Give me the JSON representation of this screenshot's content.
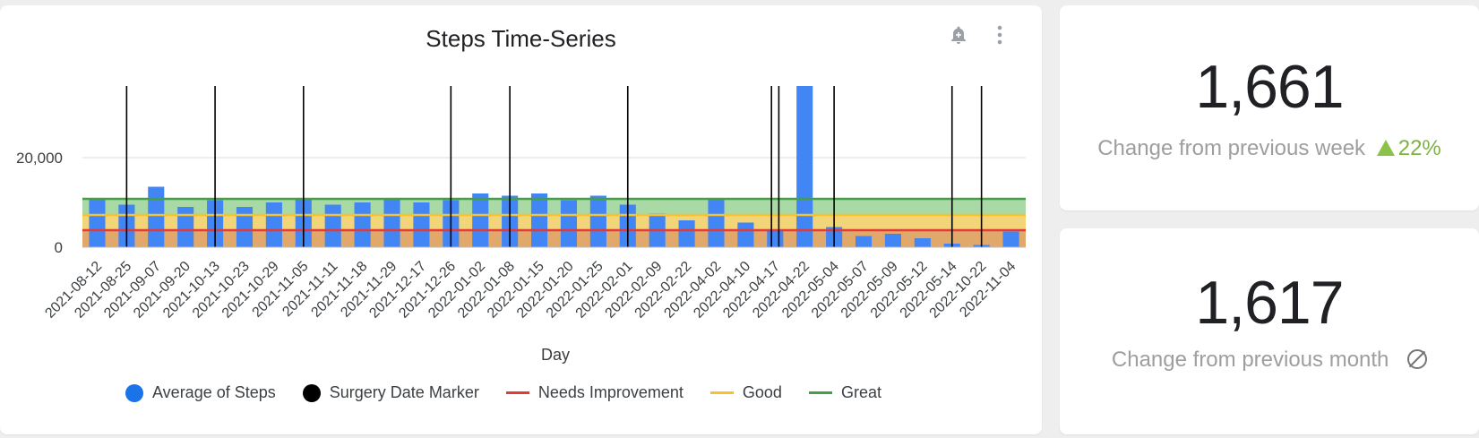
{
  "chart": {
    "title": "Steps Time-Series",
    "actions": [
      {
        "name": "add-alert-icon"
      },
      {
        "name": "more-vert-icon"
      }
    ]
  },
  "chart_data": {
    "type": "bar",
    "title": "Steps Time-Series",
    "xlabel": "Day",
    "ylabel": "",
    "ylim": [
      0,
      36000
    ],
    "yticks": [
      0,
      20000
    ],
    "ytick_labels": [
      "0",
      "20,000"
    ],
    "grid": true,
    "categories": [
      "2021-08-12",
      "2021-08-25",
      "2021-09-07",
      "2021-09-20",
      "2021-10-13",
      "2021-10-23",
      "2021-10-29",
      "2021-11-05",
      "2021-11-11",
      "2021-11-18",
      "2021-11-29",
      "2021-12-17",
      "2021-12-26",
      "2022-01-02",
      "2022-01-08",
      "2022-01-15",
      "2022-01-20",
      "2022-01-25",
      "2022-02-01",
      "2022-02-09",
      "2022-02-22",
      "2022-04-02",
      "2022-04-10",
      "2022-04-17",
      "2022-04-22",
      "2022-05-04",
      "2022-05-07",
      "2022-05-09",
      "2022-05-12",
      "2022-05-14",
      "2022-10-22",
      "2022-11-04"
    ],
    "series": [
      {
        "name": "Average of Steps",
        "type": "bar",
        "color": "#4285f4",
        "values": [
          11000,
          9500,
          13500,
          9000,
          10500,
          9000,
          10000,
          11000,
          9500,
          10000,
          11000,
          10000,
          10500,
          12000,
          11500,
          12000,
          10500,
          11500,
          9500,
          7500,
          6000,
          11000,
          5500,
          4000,
          36000,
          4500,
          2500,
          3000,
          2000,
          800,
          500,
          3500
        ]
      },
      {
        "name": "Surgery Date Marker",
        "type": "vertical-line",
        "color": "#000000",
        "dates": [
          "2021-08-25",
          "2021-10-13",
          "2021-11-05",
          "2021-12-26",
          "2022-01-08",
          "2022-02-01",
          "2022-04-17",
          "2022-04-17",
          "2022-05-04",
          "2022-05-14",
          "2022-10-22"
        ]
      },
      {
        "name": "Needs Improvement",
        "type": "threshold",
        "color": "#e53935",
        "value": 3800
      },
      {
        "name": "Good",
        "type": "threshold",
        "color": "#fbc02d",
        "value": 7200
      },
      {
        "name": "Great",
        "type": "threshold",
        "color": "#43a047",
        "value": 10800
      }
    ],
    "legend": [
      "Average of Steps",
      "Surgery Date Marker",
      "Needs Improvement",
      "Good",
      "Great"
    ],
    "legend_position": "bottom"
  },
  "kpis": [
    {
      "value": "1,661",
      "label": "Change from previous week",
      "delta": "22%",
      "delta_direction": "up"
    },
    {
      "value": "1,617",
      "label": "Change from previous month",
      "delta": "",
      "delta_direction": "none"
    }
  ],
  "colors": {
    "bar": "#4285f4",
    "marker": "#000000",
    "needs": "#e53935",
    "good": "#fbc02d",
    "great": "#43a047",
    "positive": "#7cb342"
  }
}
